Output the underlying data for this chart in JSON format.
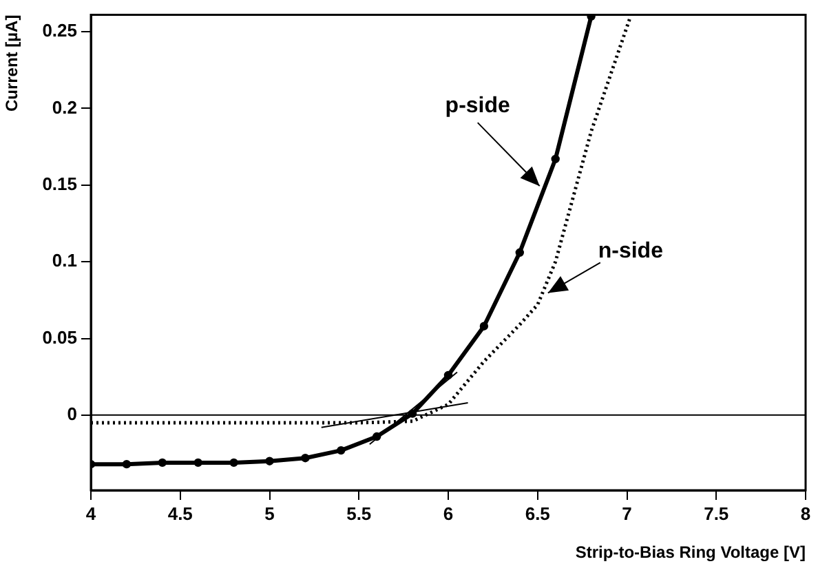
{
  "chart_data": {
    "type": "line",
    "xlabel": "Strip-to-Bias Ring Voltage [V]",
    "ylabel": "Current [µA]",
    "xlim": [
      4,
      8
    ],
    "xticks": [
      4,
      4.5,
      5,
      5.5,
      6,
      6.5,
      7,
      7.5,
      8
    ],
    "ylim": [
      -0.049,
      0.261
    ],
    "yticks": [
      0,
      0.05,
      0.1,
      0.15,
      0.2,
      0.25
    ],
    "grid": false,
    "legend": false,
    "series": [
      {
        "name": "p-side",
        "color": "#000000",
        "marker": "circle",
        "line_style": "solid",
        "x": [
          4,
          4.2,
          4.4,
          4.6,
          4.8,
          5,
          5.2,
          5.4,
          5.6,
          5.8,
          6,
          6.2,
          6.4,
          6.6,
          6.8
        ],
        "values": [
          -0.032,
          -0.032,
          -0.031,
          -0.031,
          -0.031,
          -0.03,
          -0.028,
          -0.023,
          -0.014,
          0.001,
          0.026,
          0.058,
          0.106,
          0.167,
          0.26
        ]
      },
      {
        "name": "n-side",
        "color": "#000000",
        "marker": "none",
        "line_style": "dotted",
        "x": [
          4,
          4.5,
          5,
          5.5,
          5.8,
          6,
          6.2,
          6.4,
          6.5,
          6.6,
          6.8,
          7.02
        ],
        "values": [
          -0.005,
          -0.005,
          -0.005,
          -0.005,
          -0.004,
          0.007,
          0.035,
          0.059,
          0.072,
          0.1,
          0.185,
          0.26
        ]
      },
      {
        "type": "line",
        "color": "#000000",
        "marker": "none",
        "line_style": "solid",
        "x": [
          5.29,
          6.11
        ],
        "values": [
          -0.008,
          0.008
        ]
      },
      {
        "type": "line",
        "color": "#000000",
        "marker": "none",
        "line_style": "solid",
        "x": [
          5.56,
          6.05
        ],
        "values": [
          -0.019,
          0.028
        ]
      }
    ],
    "ref_lines": [
      {
        "axis": "y",
        "value": 0,
        "color": "#000000"
      }
    ]
  }
}
